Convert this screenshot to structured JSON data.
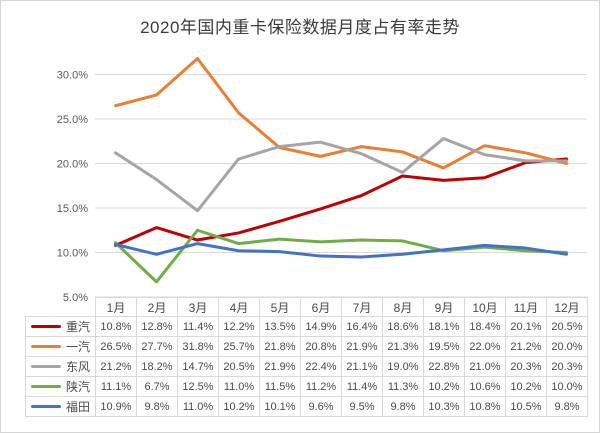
{
  "page": {
    "background": "#ffffff",
    "frame_border_color": "#d6d6d6",
    "grid_color": "#d9d9d9",
    "table_border_color": "#d9d9d9",
    "text_color": "#4a4a4a",
    "axis_label_color": "#595959",
    "title_color": "#3b3b3b"
  },
  "chart_data": {
    "type": "line",
    "title": "2020年国内重卡保险数据月度占有率走势",
    "categories": [
      "1月",
      "2月",
      "3月",
      "4月",
      "5月",
      "6月",
      "7月",
      "8月",
      "9月",
      "10月",
      "11月",
      "12月"
    ],
    "y_ticks": [
      30,
      25,
      20,
      15,
      10,
      5
    ],
    "y_tick_labels": [
      "30.0%",
      "25.0%",
      "20.0%",
      "15.0%",
      "10.0%",
      "5.0%"
    ],
    "ylim": [
      5,
      32
    ],
    "grid": "horizontal",
    "legend_position": "table-left",
    "value_suffix": "%",
    "series": [
      {
        "name": "重汽",
        "color": "#c00000",
        "values": [
          10.8,
          12.8,
          11.4,
          12.2,
          13.5,
          14.9,
          16.4,
          18.6,
          18.1,
          18.4,
          20.1,
          20.5
        ]
      },
      {
        "name": "一汽",
        "color": "#ed7d31",
        "values": [
          26.5,
          27.7,
          31.8,
          25.7,
          21.8,
          20.8,
          21.9,
          21.3,
          19.5,
          22.0,
          21.2,
          20.0
        ]
      },
      {
        "name": "东风",
        "color": "#a5a5a5",
        "values": [
          21.2,
          18.2,
          14.7,
          20.5,
          21.9,
          22.4,
          21.1,
          19.0,
          22.8,
          21.0,
          20.3,
          20.3
        ]
      },
      {
        "name": "陕汽",
        "color": "#70ad47",
        "values": [
          11.1,
          6.7,
          12.5,
          11.0,
          11.5,
          11.2,
          11.4,
          11.3,
          10.2,
          10.6,
          10.2,
          10.0
        ]
      },
      {
        "name": "福田",
        "color": "#4472c4",
        "values": [
          10.9,
          9.8,
          11.0,
          10.2,
          10.1,
          9.6,
          9.5,
          9.8,
          10.3,
          10.8,
          10.5,
          9.8
        ]
      }
    ]
  }
}
